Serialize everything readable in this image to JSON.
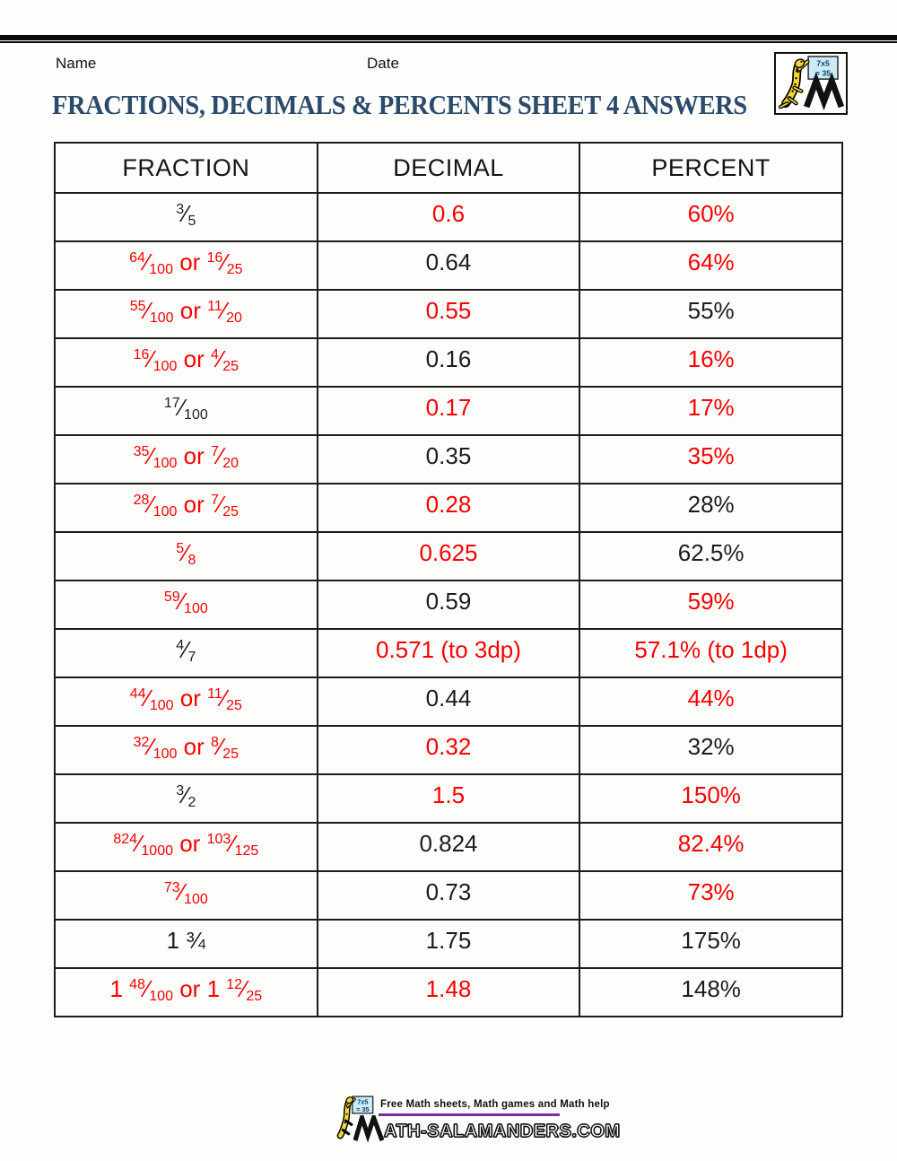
{
  "page": {
    "name_label": "Name",
    "date_label": "Date",
    "title": "FRACTIONS, DECIMALS & PERCENTS SHEET 4 ANSWERS"
  },
  "logo": {
    "board_line1": "7x5",
    "board_line2": "= 35"
  },
  "colors": {
    "red": "#fb0000",
    "black": "#1c1c1c",
    "title_blue": "#2b4a6c",
    "purple": "#7030a0",
    "board_blue": "#c9ecf6",
    "salamander_yellow": "#f2d832"
  },
  "table": {
    "headers": [
      "FRACTION",
      "DECIMAL",
      "PERCENT"
    ],
    "rows": [
      {
        "fraction": {
          "color": "black",
          "tokens": [
            {
              "n": "3",
              "d": "5"
            }
          ]
        },
        "decimal": {
          "text": "0.6",
          "color": "red"
        },
        "percent": {
          "text": "60%",
          "color": "red"
        }
      },
      {
        "fraction": {
          "color": "red",
          "tokens": [
            {
              "n": "64",
              "d": "100"
            },
            {
              "t": " or "
            },
            {
              "n": "16",
              "d": "25"
            }
          ]
        },
        "decimal": {
          "text": "0.64",
          "color": "black"
        },
        "percent": {
          "text": "64%",
          "color": "red"
        }
      },
      {
        "fraction": {
          "color": "red",
          "tokens": [
            {
              "n": "55",
              "d": "100"
            },
            {
              "t": " or "
            },
            {
              "n": "11",
              "d": "20"
            }
          ]
        },
        "decimal": {
          "text": "0.55",
          "color": "red"
        },
        "percent": {
          "text": "55%",
          "color": "black"
        }
      },
      {
        "fraction": {
          "color": "red",
          "tokens": [
            {
              "n": "16",
              "d": "100"
            },
            {
              "t": " or "
            },
            {
              "n": "4",
              "d": "25"
            }
          ]
        },
        "decimal": {
          "text": "0.16",
          "color": "black"
        },
        "percent": {
          "text": "16%",
          "color": "red"
        }
      },
      {
        "fraction": {
          "color": "black",
          "tokens": [
            {
              "n": "17",
              "d": "100"
            }
          ]
        },
        "decimal": {
          "text": "0.17",
          "color": "red"
        },
        "percent": {
          "text": "17%",
          "color": "red"
        }
      },
      {
        "fraction": {
          "color": "red",
          "tokens": [
            {
              "n": "35",
              "d": "100"
            },
            {
              "t": " or "
            },
            {
              "n": "7",
              "d": "20"
            }
          ]
        },
        "decimal": {
          "text": "0.35",
          "color": "black"
        },
        "percent": {
          "text": "35%",
          "color": "red"
        }
      },
      {
        "fraction": {
          "color": "red",
          "tokens": [
            {
              "n": "28",
              "d": "100"
            },
            {
              "t": " or "
            },
            {
              "n": "7",
              "d": "25"
            }
          ]
        },
        "decimal": {
          "text": "0.28",
          "color": "red"
        },
        "percent": {
          "text": "28%",
          "color": "black"
        }
      },
      {
        "fraction": {
          "color": "red",
          "tokens": [
            {
              "n": "5",
              "d": "8"
            }
          ]
        },
        "decimal": {
          "text": "0.625",
          "color": "red"
        },
        "percent": {
          "text": "62.5%",
          "color": "black"
        }
      },
      {
        "fraction": {
          "color": "red",
          "tokens": [
            {
              "n": "59",
              "d": "100"
            }
          ]
        },
        "decimal": {
          "text": "0.59",
          "color": "black"
        },
        "percent": {
          "text": "59%",
          "color": "red"
        }
      },
      {
        "fraction": {
          "color": "black",
          "tokens": [
            {
              "n": "4",
              "d": "7"
            }
          ]
        },
        "decimal": {
          "text": "0.571 (to 3dp)",
          "color": "red"
        },
        "percent": {
          "text": "57.1% (to 1dp)",
          "color": "red"
        }
      },
      {
        "fraction": {
          "color": "red",
          "tokens": [
            {
              "n": "44",
              "d": "100"
            },
            {
              "t": " or "
            },
            {
              "n": "11",
              "d": "25"
            }
          ]
        },
        "decimal": {
          "text": "0.44",
          "color": "black"
        },
        "percent": {
          "text": "44%",
          "color": "red"
        }
      },
      {
        "fraction": {
          "color": "red",
          "tokens": [
            {
              "n": "32",
              "d": "100"
            },
            {
              "t": " or "
            },
            {
              "n": "8",
              "d": "25"
            }
          ]
        },
        "decimal": {
          "text": "0.32",
          "color": "red"
        },
        "percent": {
          "text": "32%",
          "color": "black"
        }
      },
      {
        "fraction": {
          "color": "black",
          "tokens": [
            {
              "n": "3",
              "d": "2"
            }
          ]
        },
        "decimal": {
          "text": "1.5",
          "color": "red"
        },
        "percent": {
          "text": "150%",
          "color": "red"
        }
      },
      {
        "fraction": {
          "color": "red",
          "tokens": [
            {
              "n": "824",
              "d": "1000"
            },
            {
              "t": " or "
            },
            {
              "n": "103",
              "d": "125"
            }
          ]
        },
        "decimal": {
          "text": "0.824",
          "color": "black"
        },
        "percent": {
          "text": "82.4%",
          "color": "red"
        }
      },
      {
        "fraction": {
          "color": "red",
          "tokens": [
            {
              "n": "73",
              "d": "100"
            }
          ]
        },
        "decimal": {
          "text": "0.73",
          "color": "black"
        },
        "percent": {
          "text": "73%",
          "color": "red"
        }
      },
      {
        "fraction": {
          "color": "black",
          "tokens": [
            {
              "t": "1 ¾"
            }
          ]
        },
        "decimal": {
          "text": "1.75",
          "color": "black"
        },
        "percent": {
          "text": "175%",
          "color": "black"
        }
      },
      {
        "fraction": {
          "color": "red",
          "tokens": [
            {
              "w": "1 "
            },
            {
              "n": "48",
              "d": "100"
            },
            {
              "t": " or "
            },
            {
              "w": "1 "
            },
            {
              "n": "12",
              "d": "25"
            }
          ]
        },
        "decimal": {
          "text": "1.48",
          "color": "red"
        },
        "percent": {
          "text": "148%",
          "color": "black"
        }
      }
    ]
  },
  "footer": {
    "tagline": "Free Math sheets, Math games and Math help",
    "wordmark_rest": "ATH-SALAMANDERS.COM",
    "board_line1": "7x5",
    "board_line2": "= 35"
  }
}
